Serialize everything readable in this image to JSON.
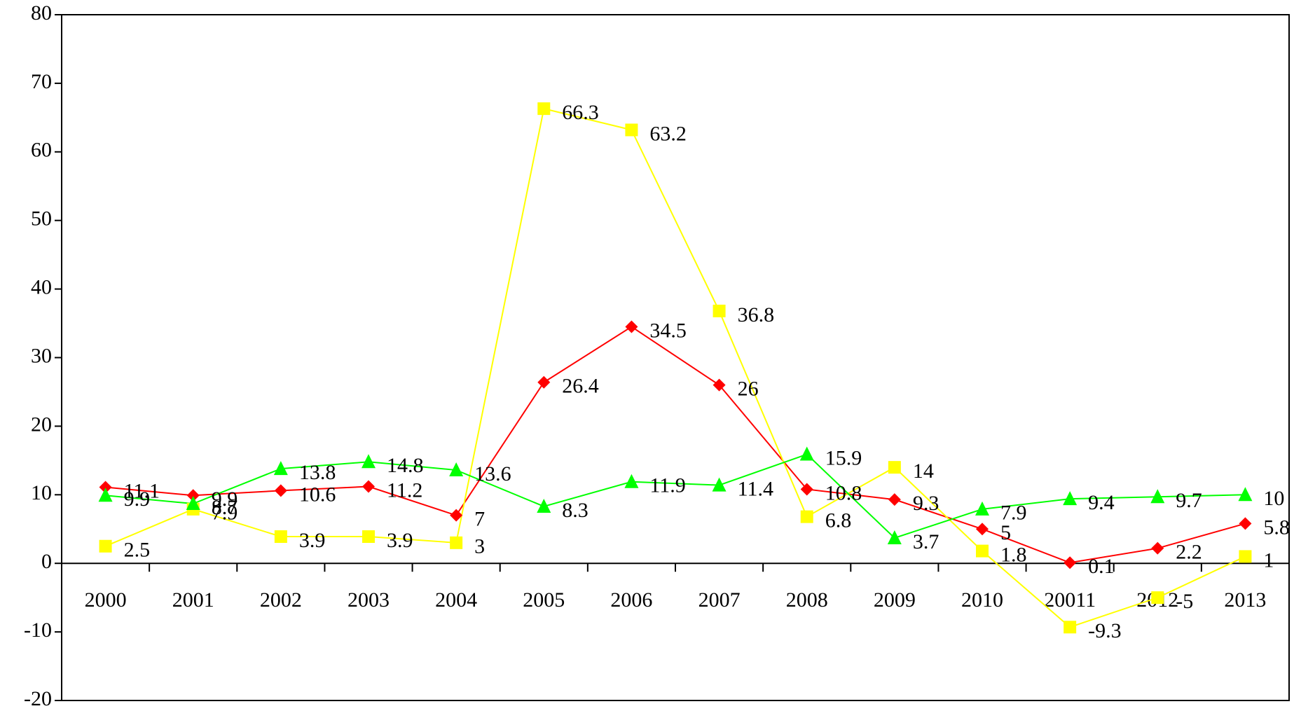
{
  "chart_data": {
    "type": "line",
    "categories": [
      "2000",
      "2001",
      "2002",
      "2003",
      "2004",
      "2005",
      "2006",
      "2007",
      "2008",
      "2009",
      "2010",
      "20011",
      "2012",
      "2013"
    ],
    "series": [
      {
        "color": "#ff0000",
        "marker": "diamond",
        "values": [
          11.1,
          9.9,
          10.6,
          11.2,
          7,
          26.4,
          34.5,
          26,
          10.8,
          9.3,
          5,
          0.1,
          2.2,
          5.8
        ]
      },
      {
        "color": "#ffff00",
        "marker": "square",
        "values": [
          2.5,
          7.9,
          3.9,
          3.9,
          3,
          66.3,
          63.2,
          36.8,
          6.8,
          14,
          1.8,
          -9.3,
          -5,
          1
        ]
      },
      {
        "color": "#00ff00",
        "marker": "triangle",
        "values": [
          9.9,
          8.7,
          13.8,
          14.8,
          13.6,
          8.3,
          11.9,
          11.4,
          15.9,
          3.7,
          7.9,
          9.4,
          9.7,
          10
        ]
      }
    ],
    "ylim": [
      -20,
      80
    ],
    "yticks": [
      -20,
      -10,
      0,
      10,
      20,
      30,
      40,
      50,
      60,
      70,
      80
    ],
    "grid": false
  }
}
